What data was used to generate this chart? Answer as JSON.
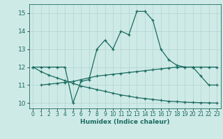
{
  "xlabel": "Humidex (Indice chaleur)",
  "bg_color": "#ceeae7",
  "line_color": "#1a6b60",
  "grid_color": "#b0d4d0",
  "ylim": [
    9.7,
    15.5
  ],
  "xlim": [
    -0.5,
    23.5
  ],
  "yticks": [
    10,
    11,
    12,
    13,
    14,
    15
  ],
  "xticks": [
    0,
    1,
    2,
    3,
    4,
    5,
    6,
    7,
    8,
    9,
    10,
    11,
    12,
    13,
    14,
    15,
    16,
    17,
    18,
    19,
    20,
    21,
    22,
    23
  ],
  "line1_x": [
    0,
    1,
    2,
    3,
    4,
    5,
    6,
    7,
    8,
    9,
    10,
    11,
    12,
    13,
    14,
    15,
    16,
    17,
    18,
    19,
    20,
    21,
    22,
    23
  ],
  "line1_y": [
    12.0,
    12.0,
    12.0,
    12.0,
    12.0,
    10.0,
    11.2,
    11.3,
    13.0,
    13.5,
    13.0,
    14.0,
    13.8,
    15.1,
    15.1,
    14.6,
    13.0,
    12.4,
    12.1,
    12.0,
    12.0,
    11.5,
    11.0,
    11.0
  ],
  "line2_x": [
    1,
    2,
    3,
    4,
    5,
    6,
    7,
    8,
    9,
    10,
    11,
    12,
    13,
    14,
    15,
    16,
    17,
    18,
    19,
    20,
    21,
    22,
    23
  ],
  "line2_y": [
    11.0,
    11.05,
    11.1,
    11.15,
    11.2,
    11.3,
    11.4,
    11.5,
    11.55,
    11.6,
    11.65,
    11.7,
    11.75,
    11.8,
    11.85,
    11.9,
    11.95,
    12.0,
    12.0,
    12.0,
    12.0,
    12.0,
    12.0
  ],
  "line3_x": [
    0,
    1,
    2,
    3,
    4,
    5,
    6,
    7,
    8,
    9,
    10,
    11,
    12,
    13,
    14,
    15,
    16,
    17,
    18,
    19,
    20,
    21,
    22,
    23
  ],
  "line3_y": [
    12.0,
    11.75,
    11.55,
    11.4,
    11.25,
    11.1,
    10.95,
    10.85,
    10.75,
    10.65,
    10.55,
    10.45,
    10.38,
    10.3,
    10.25,
    10.2,
    10.15,
    10.1,
    10.08,
    10.05,
    10.03,
    10.02,
    10.01,
    10.0
  ]
}
